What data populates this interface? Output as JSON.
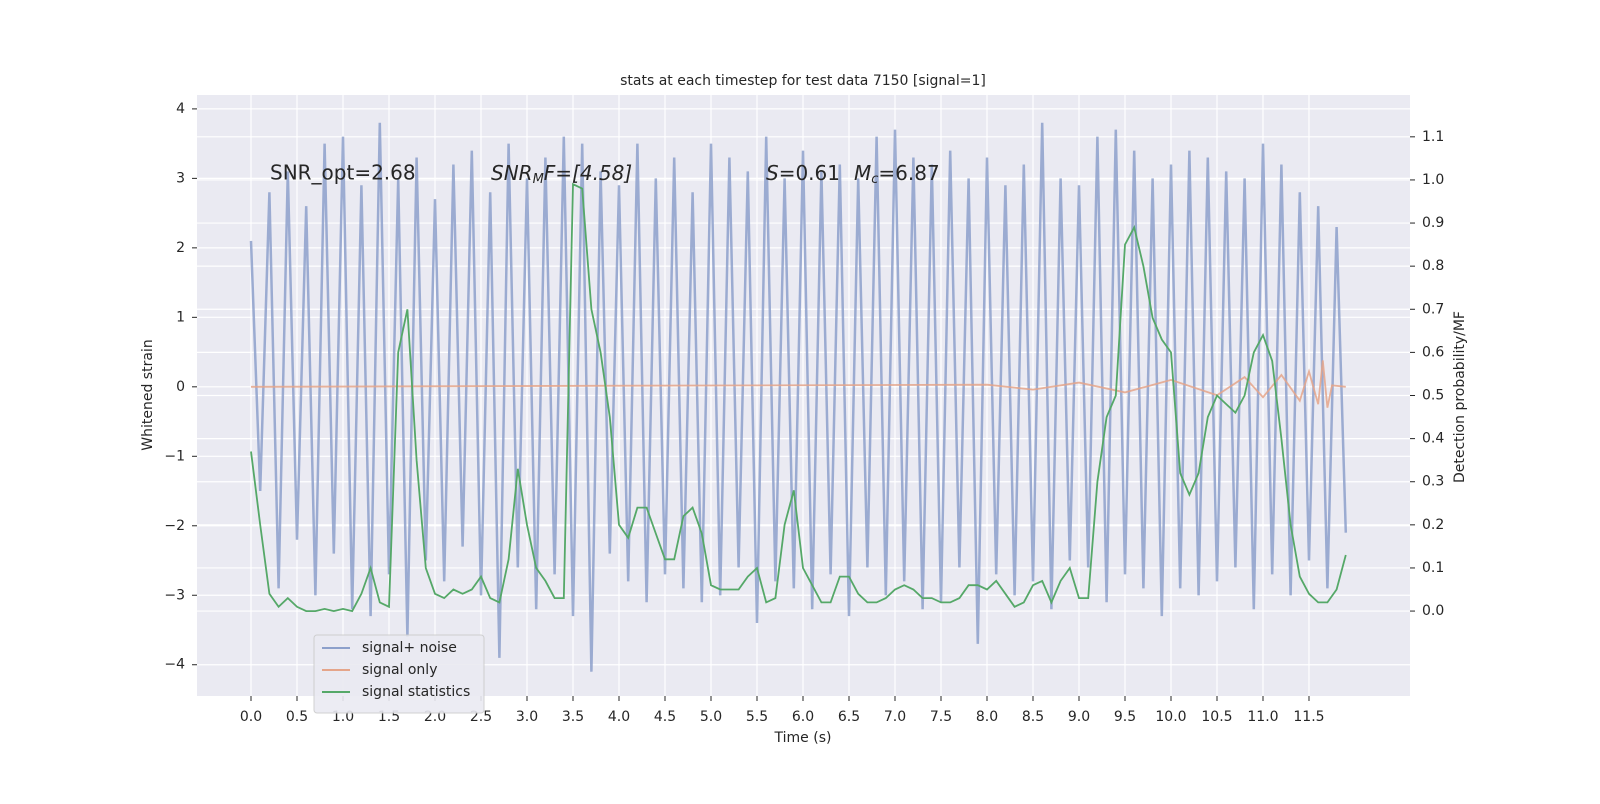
{
  "chart_data": {
    "type": "line",
    "title": "stats at each timestep for test data 7150 [signal=1]",
    "xlabel": "Time (s)",
    "ylabel": "Whitened strain",
    "y2label": "Detection probability/MF",
    "annotations": [
      {
        "text": "SNR_opt=2.68"
      },
      {
        "parts": [
          "SNR",
          "M",
          "F=[4.58]"
        ]
      },
      {
        "parts": [
          "S",
          "=0.61",
          "M",
          "c",
          "=6.87"
        ]
      }
    ],
    "grid": true,
    "legend": "lower left",
    "xlim": [
      -0.587,
      12.598
    ],
    "ylim": [
      -4.45,
      4.2
    ],
    "y2lim": [
      -0.197,
      1.197
    ],
    "xticks": [
      {
        "value": 0,
        "label": "0.0"
      },
      {
        "value": 0.5,
        "label": "0.5"
      },
      {
        "value": 1,
        "label": "1.0"
      },
      {
        "value": 1.5,
        "label": "1.5"
      },
      {
        "value": 2,
        "label": "2.0"
      },
      {
        "value": 2.5,
        "label": "2.5"
      },
      {
        "value": 3,
        "label": "3.0"
      },
      {
        "value": 3.5,
        "label": "3.5"
      },
      {
        "value": 4,
        "label": "4.0"
      },
      {
        "value": 4.5,
        "label": "4.5"
      },
      {
        "value": 5,
        "label": "5.0"
      },
      {
        "value": 5.5,
        "label": "5.5"
      },
      {
        "value": 6,
        "label": "6.0"
      },
      {
        "value": 6.5,
        "label": "6.5"
      },
      {
        "value": 7,
        "label": "7.0"
      },
      {
        "value": 7.5,
        "label": "7.5"
      },
      {
        "value": 8,
        "label": "8.0"
      },
      {
        "value": 8.5,
        "label": "8.5"
      },
      {
        "value": 9,
        "label": "9.0"
      },
      {
        "value": 9.5,
        "label": "9.5"
      },
      {
        "value": 10,
        "label": "10.0"
      },
      {
        "value": 10.5,
        "label": "10.5"
      },
      {
        "value": 11,
        "label": "11.0"
      },
      {
        "value": 11.5,
        "label": "11.5"
      }
    ],
    "yticks": [
      {
        "value": -4,
        "label": "−4"
      },
      {
        "value": -3,
        "label": "−3"
      },
      {
        "value": -2,
        "label": "−2"
      },
      {
        "value": -1,
        "label": "−1"
      },
      0,
      1,
      2,
      3,
      4
    ],
    "y2ticks": [
      {
        "value": 0,
        "label": "0.0"
      },
      {
        "value": 0.1,
        "label": "0.1"
      },
      {
        "value": 0.2,
        "label": "0.2"
      },
      {
        "value": 0.3,
        "label": "0.3"
      },
      {
        "value": 0.4,
        "label": "0.4"
      },
      {
        "value": 0.5,
        "label": "0.5"
      },
      {
        "value": 0.6,
        "label": "0.6"
      },
      {
        "value": 0.7,
        "label": "0.7"
      },
      {
        "value": 0.8,
        "label": "0.8"
      },
      {
        "value": 0.9,
        "label": "0.9"
      },
      {
        "value": 1,
        "label": "1.0"
      },
      {
        "value": 1.1,
        "label": "1.1"
      }
    ],
    "x": [
      0,
      0.1,
      0.2,
      0.3,
      0.4,
      0.5,
      0.6,
      0.7,
      0.8,
      0.9,
      1,
      1.1,
      1.2,
      1.3,
      1.4,
      1.5,
      1.6,
      1.7,
      1.8,
      1.9,
      2,
      2.1,
      2.2,
      2.3,
      2.4,
      2.5,
      2.6,
      2.7,
      2.8,
      2.9,
      3,
      3.1,
      3.2,
      3.3,
      3.4,
      3.5,
      3.6,
      3.7,
      3.8,
      3.9,
      4,
      4.1,
      4.2,
      4.3,
      4.4,
      4.5,
      4.6,
      4.7,
      4.8,
      4.9,
      5,
      5.1,
      5.2,
      5.3,
      5.4,
      5.5,
      5.6,
      5.7,
      5.8,
      5.9,
      6,
      6.1,
      6.2,
      6.3,
      6.4,
      6.5,
      6.6,
      6.7,
      6.8,
      6.9,
      7,
      7.1,
      7.2,
      7.3,
      7.4,
      7.5,
      7.6,
      7.7,
      7.8,
      7.9,
      8,
      8.1,
      8.2,
      8.3,
      8.4,
      8.5,
      8.6,
      8.7,
      8.8,
      8.9,
      9,
      9.1,
      9.2,
      9.3,
      9.4,
      9.5,
      9.6,
      9.7,
      9.8,
      9.9,
      10,
      10.1,
      10.2,
      10.3,
      10.4,
      10.5,
      10.6,
      10.7,
      10.8,
      10.9,
      11,
      11.1,
      11.2,
      11.3,
      11.4,
      11.5,
      11.6,
      11.7,
      11.8,
      11.9
    ],
    "series": [
      {
        "name": "signal+ noise",
        "color": "#8da0cb",
        "values": [
          2.1,
          -1.5,
          2.8,
          -2.9,
          3.1,
          -2.2,
          2.6,
          -3.0,
          3.5,
          -2.4,
          3.6,
          -3.2,
          2.9,
          -3.3,
          3.8,
          -2.7,
          3.0,
          -3.6,
          3.3,
          -2.5,
          2.7,
          -2.8,
          3.2,
          -2.3,
          3.4,
          -3.0,
          2.8,
          -3.9,
          3.5,
          -2.6,
          3.0,
          -3.2,
          3.3,
          -2.7,
          3.6,
          -3.3,
          3.5,
          -4.1,
          3.1,
          -2.4,
          2.9,
          -2.8,
          3.5,
          -3.1,
          3.0,
          -2.7,
          3.3,
          -2.9,
          2.8,
          -3.1,
          3.5,
          -3.0,
          3.3,
          -2.6,
          3.1,
          -3.4,
          3.6,
          -2.8,
          3.0,
          -2.9,
          3.4,
          -3.2,
          3.1,
          -2.7,
          3.2,
          -3.3,
          3.0,
          -2.6,
          3.6,
          -3.0,
          3.7,
          -2.8,
          3.3,
          -3.2,
          3.2,
          -3.1,
          3.4,
          -2.6,
          3.0,
          -3.7,
          3.3,
          -2.7,
          2.9,
          -3.0,
          3.2,
          -2.8,
          3.8,
          -3.2,
          3.0,
          -2.5,
          2.9,
          -2.6,
          3.6,
          -3.1,
          3.7,
          -2.7,
          3.4,
          -2.9,
          3.0,
          -3.3,
          3.2,
          -2.9,
          3.4,
          -3.0,
          3.3,
          -2.8,
          3.1,
          -2.6,
          3.0,
          -3.2,
          3.5,
          -2.7,
          3.2,
          -3.0,
          2.8,
          -2.5,
          2.6,
          -2.9,
          2.3,
          -2.1
        ]
      },
      {
        "name": "signal only",
        "color": "#e5a58a",
        "x": [
          0,
          8,
          8.5,
          9,
          9.5,
          10,
          10.5,
          10.8,
          11,
          11.2,
          11.4,
          11.5,
          11.6,
          11.65,
          11.7,
          11.75,
          11.9
        ],
        "values": [
          0,
          0.03,
          -0.04,
          0.06,
          -0.08,
          0.1,
          -0.12,
          0.14,
          -0.15,
          0.17,
          -0.2,
          0.22,
          -0.25,
          0.38,
          -0.3,
          0.02,
          0
        ]
      },
      {
        "name": "signal statistics",
        "color": "#55a868",
        "axis": "y2",
        "values": [
          0.37,
          0.2,
          0.04,
          0.01,
          0.03,
          0.01,
          0.0,
          0.0,
          0.005,
          0.0,
          0.005,
          0.0,
          0.04,
          0.1,
          0.02,
          0.01,
          0.6,
          0.7,
          0.35,
          0.1,
          0.04,
          0.03,
          0.05,
          0.04,
          0.05,
          0.08,
          0.03,
          0.02,
          0.12,
          0.33,
          0.2,
          0.1,
          0.07,
          0.03,
          0.03,
          0.99,
          0.98,
          0.7,
          0.6,
          0.45,
          0.2,
          0.17,
          0.24,
          0.24,
          0.18,
          0.12,
          0.12,
          0.22,
          0.24,
          0.18,
          0.06,
          0.05,
          0.05,
          0.05,
          0.08,
          0.1,
          0.02,
          0.03,
          0.2,
          0.28,
          0.1,
          0.06,
          0.02,
          0.02,
          0.08,
          0.08,
          0.04,
          0.02,
          0.02,
          0.03,
          0.05,
          0.06,
          0.05,
          0.03,
          0.03,
          0.02,
          0.02,
          0.03,
          0.06,
          0.06,
          0.05,
          0.07,
          0.04,
          0.01,
          0.02,
          0.06,
          0.07,
          0.02,
          0.07,
          0.1,
          0.03,
          0.03,
          0.3,
          0.45,
          0.5,
          0.85,
          0.89,
          0.8,
          0.68,
          0.63,
          0.6,
          0.32,
          0.27,
          0.32,
          0.45,
          0.5,
          0.48,
          0.46,
          0.5,
          0.6,
          0.64,
          0.58,
          0.4,
          0.2,
          0.08,
          0.04,
          0.02,
          0.02,
          0.05,
          0.13
        ]
      }
    ]
  }
}
